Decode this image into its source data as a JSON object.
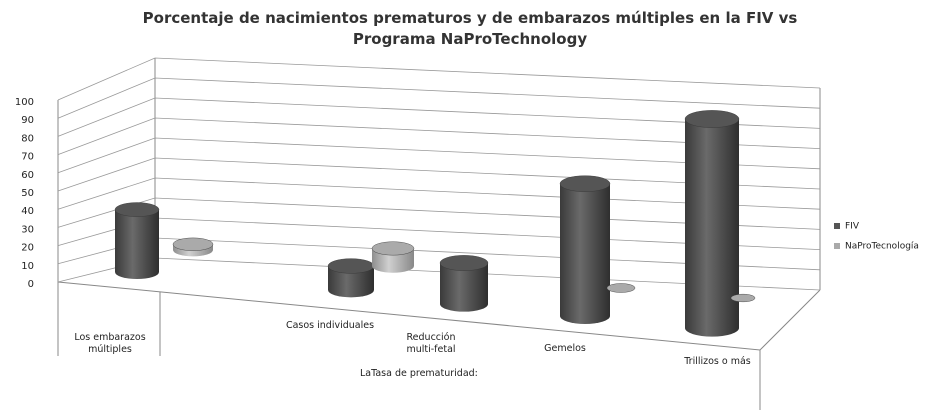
{
  "chart_data": {
    "type": "bar3d",
    "title": "Porcentaje de nacimientos prematuros y de embarazos múltiples en la FIV vs Programa NaProTechnology",
    "x_label": "LaTasa de prematuridad:",
    "categories": [
      "Los embarazos múltiples",
      "Casos individuales",
      "Reducción multi-fetal",
      "Gemelos",
      "Trillizos o más"
    ],
    "series": [
      {
        "name": "FIV",
        "color": "#555555",
        "values": [
          32,
          12,
          20,
          63,
          95
        ]
      },
      {
        "name": "NaProTecnología",
        "color": "#aaaaaa",
        "values": [
          3,
          9,
          null,
          0,
          0
        ]
      }
    ],
    "ylim": [
      0,
      100
    ],
    "yticks": [
      0,
      10,
      20,
      30,
      40,
      50,
      60,
      70,
      80,
      90,
      100
    ],
    "grid": true,
    "legend": "right"
  }
}
